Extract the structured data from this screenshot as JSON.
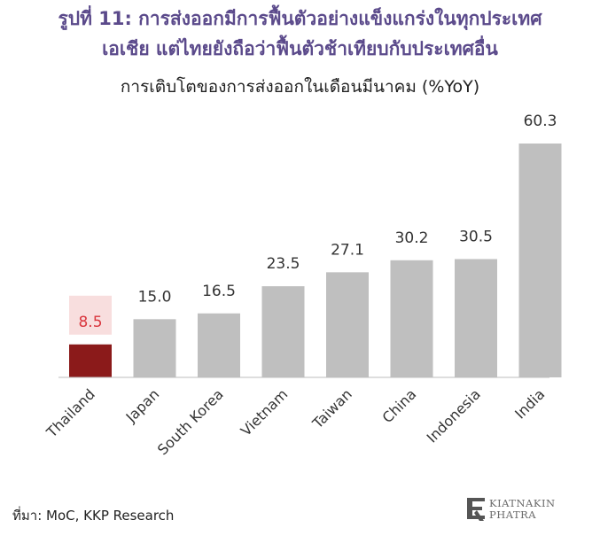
{
  "header": {
    "title_line1": "รูปที่ 11: การส่งออกมีการฟื้นตัวอย่างแข็งแกร่งในทุกประเทศ",
    "title_line2": "เอเชีย แต่ไทยยังถือว่าฟื้นตัวช้าเทียบกับประเทศอื่น",
    "subtitle": "การเติบโตของการส่งออกในเดือนมีนาคม (%YoY)"
  },
  "chart_data": {
    "type": "bar",
    "categories": [
      "Thailand",
      "Japan",
      "South Korea",
      "Vietnam",
      "Taiwan",
      "China",
      "Indonesia",
      "India"
    ],
    "values": [
      8.5,
      15.0,
      16.5,
      23.5,
      27.1,
      30.2,
      30.5,
      60.3
    ],
    "value_labels": [
      "8.5",
      "15.0",
      "16.5",
      "23.5",
      "27.1",
      "30.2",
      "30.5",
      "60.3"
    ],
    "colors": {
      "default_bar": "#bfbfbf",
      "highlight_bar": "#8b1a1a",
      "highlight_label": "#d9363e",
      "highlight_label_bg": "#f8dede",
      "label": "#333333"
    },
    "highlight_index": 0,
    "ylim": [
      0,
      60.3
    ],
    "grid": false,
    "legend": "none"
  },
  "footer": {
    "source": "ที่มา: MoC, KKP Research",
    "logo_line1": "KIATNAKIN",
    "logo_line2": "PHATRA"
  }
}
